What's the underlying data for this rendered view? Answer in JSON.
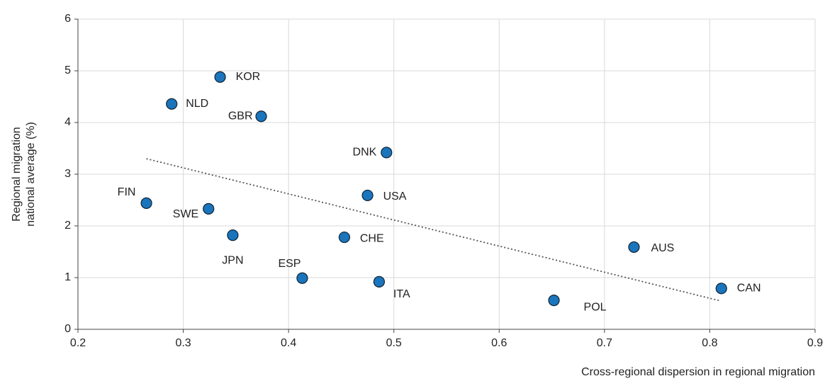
{
  "chart_data": {
    "type": "scatter",
    "xlabel": "Cross-regional dispersion in regional migration",
    "ylabel": [
      "Regional migration",
      "national average (%)"
    ],
    "labels": [
      "FIN",
      "NLD",
      "KOR",
      "GBR",
      "SWE",
      "JPN",
      "DNK",
      "USA",
      "CHE",
      "ESP",
      "ITA",
      "POL",
      "AUS",
      "CAN"
    ],
    "x": [
      0.265,
      0.289,
      0.335,
      0.374,
      0.324,
      0.347,
      0.493,
      0.475,
      0.453,
      0.413,
      0.486,
      0.652,
      0.728,
      0.811
    ],
    "values": [
      2.44,
      4.36,
      4.88,
      4.12,
      2.33,
      1.82,
      3.42,
      2.59,
      1.78,
      0.99,
      0.92,
      0.56,
      1.59,
      0.79
    ],
    "color": "#1a75bc",
    "trendline": {
      "x": [
        0.265,
        0.81
      ],
      "values": [
        3.3,
        0.55
      ]
    },
    "xlim": [
      0.2,
      0.9
    ],
    "xticks": [
      0.2,
      0.3,
      0.4,
      0.5,
      0.6,
      0.7,
      0.8,
      0.9
    ],
    "ylim": [
      0,
      6
    ],
    "yticks": [
      0,
      1,
      2,
      3,
      4,
      5,
      6
    ],
    "grid": true
  }
}
